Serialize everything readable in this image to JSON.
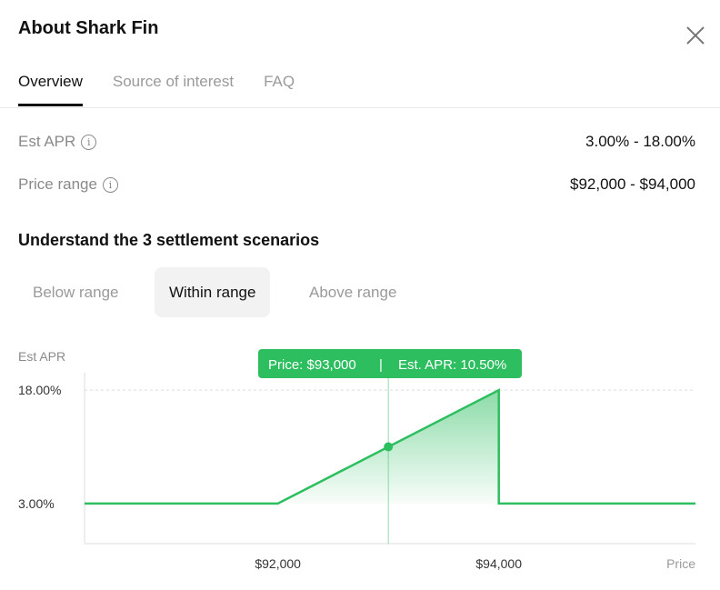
{
  "title": "About Shark Fin",
  "tabs": [
    {
      "label": "Overview",
      "active": true
    },
    {
      "label": "Source of interest"
    },
    {
      "label": "FAQ"
    }
  ],
  "rows": [
    {
      "label": "Est APR",
      "value": "3.00% - 18.00%"
    },
    {
      "label": "Price range",
      "value": "$92,000 - $94,000"
    }
  ],
  "scenarios": {
    "heading": "Understand the 3 settlement scenarios",
    "options": [
      "Below range",
      "Within range",
      "Above range"
    ],
    "selected": "Within range"
  },
  "chart_data": {
    "type": "area",
    "ylabel": "Est APR",
    "xlabel": "Price",
    "xlim": [
      90250,
      95780
    ],
    "ylim": [
      -2.3,
      20.3
    ],
    "x_ticks": [
      {
        "value": 92000,
        "label": "$92,000"
      },
      {
        "value": 94000,
        "label": "$94,000"
      }
    ],
    "y_ticks": [
      {
        "value": 18,
        "label": "18.00%"
      },
      {
        "value": 3,
        "label": "3.00%"
      }
    ],
    "series": [
      {
        "points": [
          [
            90250,
            3
          ],
          [
            92000,
            3
          ],
          [
            94000,
            18
          ],
          [
            94000,
            3
          ],
          [
            95780,
            3
          ]
        ]
      }
    ],
    "marker": {
      "x": 93000,
      "y": 10.5
    },
    "tooltip": {
      "price": "Price: $93,000",
      "sep": "|",
      "apr": "Est. APR: 10.50%"
    },
    "color": "#2dbe60"
  }
}
